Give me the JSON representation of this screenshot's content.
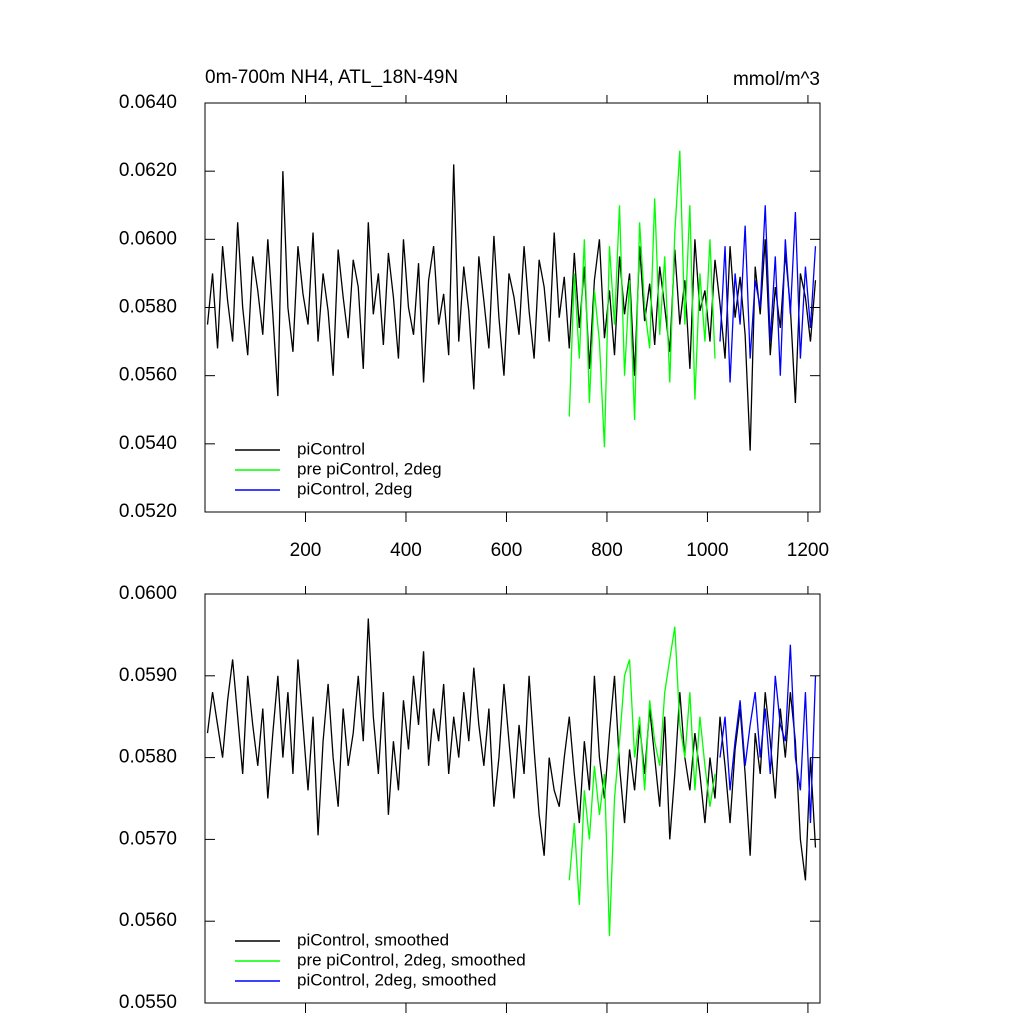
{
  "chart_data": [
    {
      "type": "line",
      "title": "0m-700m NH4, ATL_18N-49N",
      "units": "mmol/m^3",
      "xlim": [
        0,
        1224
      ],
      "xticks": [
        200,
        400,
        600,
        800,
        1000,
        1200
      ],
      "ylim": [
        0.052,
        0.064
      ],
      "yticks": [
        {
          "value": 0.052,
          "label": "0.0520"
        },
        {
          "value": 0.054,
          "label": "0.0540"
        },
        {
          "value": 0.056,
          "label": "0.0560"
        },
        {
          "value": 0.058,
          "label": "0.0580"
        },
        {
          "value": 0.06,
          "label": "0.0600"
        },
        {
          "value": 0.062,
          "label": "0.0620"
        },
        {
          "value": 0.064,
          "label": "0.0640"
        }
      ],
      "legend": "lower left",
      "x": [
        5,
        15,
        25,
        35,
        45,
        55,
        65,
        75,
        85,
        95,
        105,
        115,
        125,
        135,
        145,
        155,
        165,
        175,
        185,
        195,
        205,
        215,
        225,
        235,
        245,
        255,
        265,
        275,
        285,
        295,
        305,
        315,
        325,
        335,
        345,
        355,
        365,
        375,
        385,
        395,
        405,
        415,
        425,
        435,
        445,
        455,
        465,
        475,
        485,
        495,
        505,
        515,
        525,
        535,
        545,
        555,
        565,
        575,
        585,
        595,
        605,
        615,
        625,
        635,
        645,
        655,
        665,
        675,
        685,
        695,
        705,
        715,
        725,
        735,
        745,
        755,
        765,
        775,
        785,
        795,
        805,
        815,
        825,
        835,
        845,
        855,
        865,
        875,
        885,
        895,
        905,
        915,
        925,
        935,
        945,
        955,
        965,
        975,
        985,
        995,
        1005,
        1015,
        1025,
        1035,
        1045,
        1055,
        1065,
        1075,
        1085,
        1095,
        1105,
        1115,
        1125,
        1135,
        1145,
        1155,
        1165,
        1175,
        1185,
        1195,
        1205,
        1215
      ],
      "series": [
        {
          "name": "piControl",
          "color": "#000000",
          "values": [
            0.0575,
            0.059,
            0.0568,
            0.0598,
            0.0582,
            0.057,
            0.0605,
            0.058,
            0.0566,
            0.0595,
            0.0585,
            0.0572,
            0.06,
            0.0578,
            0.0554,
            0.062,
            0.058,
            0.0567,
            0.0598,
            0.0584,
            0.0575,
            0.0602,
            0.057,
            0.059,
            0.0579,
            0.056,
            0.0597,
            0.0583,
            0.0571,
            0.0594,
            0.0586,
            0.0562,
            0.0605,
            0.0578,
            0.059,
            0.0569,
            0.0596,
            0.0583,
            0.0565,
            0.06,
            0.058,
            0.0572,
            0.0593,
            0.0558,
            0.0588,
            0.0598,
            0.0575,
            0.0584,
            0.0566,
            0.0622,
            0.057,
            0.0592,
            0.0579,
            0.0556,
            0.0595,
            0.0582,
            0.0568,
            0.0601,
            0.0577,
            0.056,
            0.059,
            0.0583,
            0.0572,
            0.0598,
            0.0579,
            0.0565,
            0.0594,
            0.0586,
            0.057,
            0.0602,
            0.0577,
            0.0589,
            0.0568,
            0.0596,
            0.0574,
            0.0592,
            0.0562,
            0.0588,
            0.06,
            0.0571,
            0.0585,
            0.0566,
            0.0595,
            0.0578,
            0.059,
            0.056,
            0.0598,
            0.0576,
            0.0587,
            0.0569,
            0.0592,
            0.058,
            0.0567,
            0.0597,
            0.0575,
            0.0588,
            0.0562,
            0.06,
            0.0579,
            0.0585,
            0.057,
            0.0594,
            0.0581,
            0.0565,
            0.0598,
            0.0577,
            0.0589,
            0.0572,
            0.0538,
            0.0592,
            0.0578,
            0.06,
            0.0566,
            0.0586,
            0.0574,
            0.0596,
            0.058,
            0.0552,
            0.059,
            0.0583,
            0.057,
            0.0588
          ]
        },
        {
          "name": "pre piControl, 2deg",
          "color": "#00ff00",
          "values": [
            null,
            null,
            null,
            null,
            null,
            null,
            null,
            null,
            null,
            null,
            null,
            null,
            null,
            null,
            null,
            null,
            null,
            null,
            null,
            null,
            null,
            null,
            null,
            null,
            null,
            null,
            null,
            null,
            null,
            null,
            null,
            null,
            null,
            null,
            null,
            null,
            null,
            null,
            null,
            null,
            null,
            null,
            null,
            null,
            null,
            null,
            null,
            null,
            null,
            null,
            null,
            null,
            null,
            null,
            null,
            null,
            null,
            null,
            null,
            null,
            null,
            null,
            null,
            null,
            null,
            null,
            null,
            null,
            null,
            null,
            null,
            null,
            0.0548,
            0.059,
            0.0565,
            0.06,
            0.0552,
            0.0585,
            0.057,
            0.0539,
            0.0598,
            0.0575,
            0.061,
            0.056,
            0.0588,
            0.0547,
            0.0605,
            0.058,
            0.0568,
            0.0612,
            0.0572,
            0.0595,
            0.0558,
            0.0602,
            0.0626,
            0.0575,
            0.061,
            0.0553,
            0.059,
            0.057,
            0.06,
            0.0565,
            null,
            null,
            null,
            null,
            null,
            null,
            null,
            null,
            null,
            null,
            null,
            null,
            null,
            null,
            null,
            null,
            null,
            null,
            null,
            null
          ]
        },
        {
          "name": "piControl, 2deg",
          "color": "#0000ff",
          "values": [
            null,
            null,
            null,
            null,
            null,
            null,
            null,
            null,
            null,
            null,
            null,
            null,
            null,
            null,
            null,
            null,
            null,
            null,
            null,
            null,
            null,
            null,
            null,
            null,
            null,
            null,
            null,
            null,
            null,
            null,
            null,
            null,
            null,
            null,
            null,
            null,
            null,
            null,
            null,
            null,
            null,
            null,
            null,
            null,
            null,
            null,
            null,
            null,
            null,
            null,
            null,
            null,
            null,
            null,
            null,
            null,
            null,
            null,
            null,
            null,
            null,
            null,
            null,
            null,
            null,
            null,
            null,
            null,
            null,
            null,
            null,
            null,
            null,
            null,
            null,
            null,
            null,
            null,
            null,
            null,
            null,
            null,
            null,
            null,
            null,
            null,
            null,
            null,
            null,
            null,
            null,
            null,
            null,
            null,
            null,
            null,
            null,
            null,
            null,
            null,
            null,
            null,
            0.057,
            0.0598,
            0.0558,
            0.059,
            0.0575,
            0.0604,
            0.0565,
            0.0588,
            0.058,
            0.061,
            0.057,
            0.0595,
            0.056,
            0.06,
            0.0578,
            0.0608,
            0.0565,
            0.0592,
            0.0574,
            0.0598
          ]
        }
      ]
    },
    {
      "type": "line",
      "xlim": [
        0,
        1224
      ],
      "ylim": [
        0.055,
        0.06
      ],
      "yticks": [
        {
          "value": 0.055,
          "label": "0.0550"
        },
        {
          "value": 0.056,
          "label": "0.0560"
        },
        {
          "value": 0.057,
          "label": "0.0570"
        },
        {
          "value": 0.058,
          "label": "0.0580"
        },
        {
          "value": 0.059,
          "label": "0.0590"
        },
        {
          "value": 0.06,
          "label": "0.0600"
        }
      ],
      "legend": "lower left",
      "x": [
        5,
        15,
        25,
        35,
        45,
        55,
        65,
        75,
        85,
        95,
        105,
        115,
        125,
        135,
        145,
        155,
        165,
        175,
        185,
        195,
        205,
        215,
        225,
        235,
        245,
        255,
        265,
        275,
        285,
        295,
        305,
        315,
        325,
        335,
        345,
        355,
        365,
        375,
        385,
        395,
        405,
        415,
        425,
        435,
        445,
        455,
        465,
        475,
        485,
        495,
        505,
        515,
        525,
        535,
        545,
        555,
        565,
        575,
        585,
        595,
        605,
        615,
        625,
        635,
        645,
        655,
        665,
        675,
        685,
        695,
        705,
        715,
        725,
        735,
        745,
        755,
        765,
        775,
        785,
        795,
        805,
        815,
        825,
        835,
        845,
        855,
        865,
        875,
        885,
        895,
        905,
        915,
        925,
        935,
        945,
        955,
        965,
        975,
        985,
        995,
        1005,
        1015,
        1025,
        1035,
        1045,
        1055,
        1065,
        1075,
        1085,
        1095,
        1105,
        1115,
        1125,
        1135,
        1145,
        1155,
        1165,
        1175,
        1185,
        1195,
        1205,
        1215
      ],
      "series": [
        {
          "name": "piControl, smoothed",
          "color": "#000000",
          "values": [
            0.0583,
            0.0588,
            0.0584,
            0.058,
            0.0587,
            0.0592,
            0.0585,
            0.0578,
            0.059,
            0.0584,
            0.0579,
            0.0586,
            0.0575,
            0.0583,
            0.059,
            0.058,
            0.0588,
            0.0578,
            0.0592,
            0.0584,
            0.0576,
            0.0585,
            0.05705,
            0.0582,
            0.0589,
            0.058,
            0.0574,
            0.0586,
            0.0579,
            0.0583,
            0.059,
            0.0582,
            0.0597,
            0.0585,
            0.0578,
            0.0588,
            0.0573,
            0.0582,
            0.0576,
            0.0587,
            0.0581,
            0.059,
            0.0584,
            0.0593,
            0.0579,
            0.0586,
            0.0582,
            0.0589,
            0.0578,
            0.0585,
            0.058,
            0.0588,
            0.0582,
            0.0591,
            0.0584,
            0.0579,
            0.0586,
            0.0574,
            0.058,
            0.0589,
            0.0582,
            0.0575,
            0.0584,
            0.0578,
            0.059,
            0.0581,
            0.0573,
            0.0568,
            0.058,
            0.0576,
            0.0574,
            0.058,
            0.0585,
            0.0578,
            0.0572,
            0.0582,
            0.0576,
            0.059,
            0.058,
            0.0575,
            0.0583,
            0.059,
            0.0579,
            0.0572,
            0.0581,
            0.0576,
            0.0584,
            0.0578,
            0.0586,
            0.058,
            0.0574,
            0.0585,
            0.057,
            0.0578,
            0.0588,
            0.058,
            0.0576,
            0.0583,
            0.0578,
            0.0572,
            0.058,
            0.0575,
            0.0585,
            0.0579,
            0.0572,
            0.0581,
            0.0586,
            0.0578,
            0.0568,
            0.0583,
            0.0578,
            0.0588,
            0.0582,
            0.0575,
            0.0586,
            0.058,
            0.0588,
            0.0582,
            0.057,
            0.0565,
            0.058,
            0.0569
          ]
        },
        {
          "name": "pre piControl, 2deg, smoothed",
          "color": "#00ff00",
          "values": [
            null,
            null,
            null,
            null,
            null,
            null,
            null,
            null,
            null,
            null,
            null,
            null,
            null,
            null,
            null,
            null,
            null,
            null,
            null,
            null,
            null,
            null,
            null,
            null,
            null,
            null,
            null,
            null,
            null,
            null,
            null,
            null,
            null,
            null,
            null,
            null,
            null,
            null,
            null,
            null,
            null,
            null,
            null,
            null,
            null,
            null,
            null,
            null,
            null,
            null,
            null,
            null,
            null,
            null,
            null,
            null,
            null,
            null,
            null,
            null,
            null,
            null,
            null,
            null,
            null,
            null,
            null,
            null,
            null,
            null,
            null,
            null,
            0.0565,
            0.0572,
            0.0562,
            0.0576,
            0.057,
            0.0579,
            0.0573,
            0.0578,
            0.05582,
            0.0575,
            0.0582,
            0.059,
            0.0592,
            0.058,
            0.0585,
            0.0576,
            0.0587,
            0.0582,
            0.0579,
            0.0588,
            0.0592,
            0.0596,
            0.0584,
            0.058,
            0.0588,
            0.0576,
            0.0585,
            0.0579,
            0.0574,
            0.0578,
            null,
            null,
            null,
            null,
            null,
            null,
            null,
            null,
            null,
            null,
            null,
            null,
            null,
            null,
            null,
            null,
            null,
            null,
            null,
            null
          ]
        },
        {
          "name": "piControl, 2deg, smoothed",
          "color": "#0000ff",
          "values": [
            null,
            null,
            null,
            null,
            null,
            null,
            null,
            null,
            null,
            null,
            null,
            null,
            null,
            null,
            null,
            null,
            null,
            null,
            null,
            null,
            null,
            null,
            null,
            null,
            null,
            null,
            null,
            null,
            null,
            null,
            null,
            null,
            null,
            null,
            null,
            null,
            null,
            null,
            null,
            null,
            null,
            null,
            null,
            null,
            null,
            null,
            null,
            null,
            null,
            null,
            null,
            null,
            null,
            null,
            null,
            null,
            null,
            null,
            null,
            null,
            null,
            null,
            null,
            null,
            null,
            null,
            null,
            null,
            null,
            null,
            null,
            null,
            null,
            null,
            null,
            null,
            null,
            null,
            null,
            null,
            null,
            null,
            null,
            null,
            null,
            null,
            null,
            null,
            null,
            null,
            null,
            null,
            null,
            null,
            null,
            null,
            null,
            null,
            null,
            null,
            null,
            null,
            0.058,
            0.0585,
            0.0576,
            0.0582,
            0.0587,
            0.0579,
            0.0584,
            0.0588,
            0.058,
            0.0586,
            0.0578,
            0.059,
            0.0584,
            0.0582,
            0.05938,
            0.058,
            0.0576,
            0.0588,
            0.0572,
            0.059
          ]
        }
      ]
    }
  ]
}
